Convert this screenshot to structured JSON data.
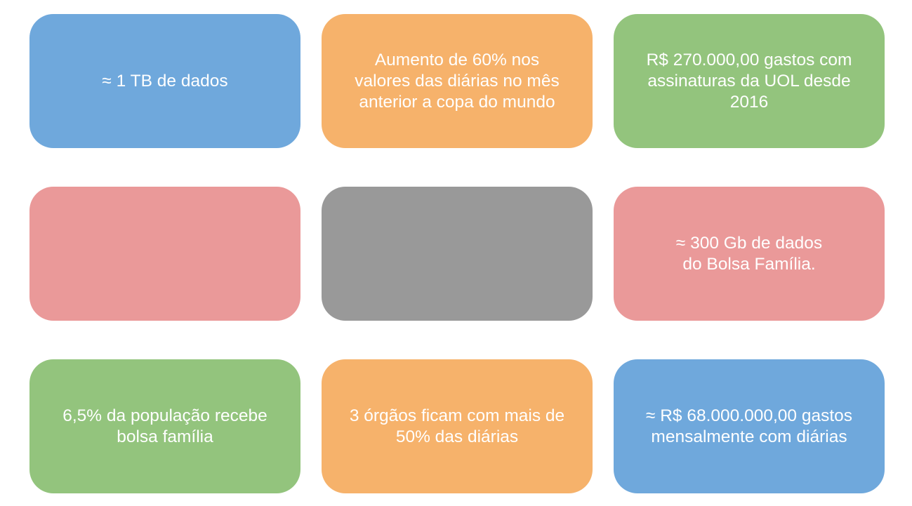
{
  "cards": [
    {
      "text": "≈ 1 TB de dados",
      "color": "#6fa8dc"
    },
    {
      "text": "Aumento de 60% nos\nvalores das diárias no mês\nanterior a copa do mundo",
      "color": "#f6b26b"
    },
    {
      "text": "R$ 270.000,00 gastos com\nassinaturas da UOL desde\n2016",
      "color": "#93c47d"
    },
    {
      "text": "",
      "color": "#ea9999"
    },
    {
      "text": "",
      "color": "#999999"
    },
    {
      "text": "≈ 300 Gb de dados\ndo Bolsa Família.",
      "color": "#ea9999"
    },
    {
      "text": "6,5% da população recebe\nbolsa família",
      "color": "#93c47d"
    },
    {
      "text": "3 órgãos ficam com mais de\n50% das diárias",
      "color": "#f6b26b"
    },
    {
      "text": "≈ R$ 68.000.000,00 gastos\nmensalmente com diárias",
      "color": "#6fa8dc"
    }
  ]
}
